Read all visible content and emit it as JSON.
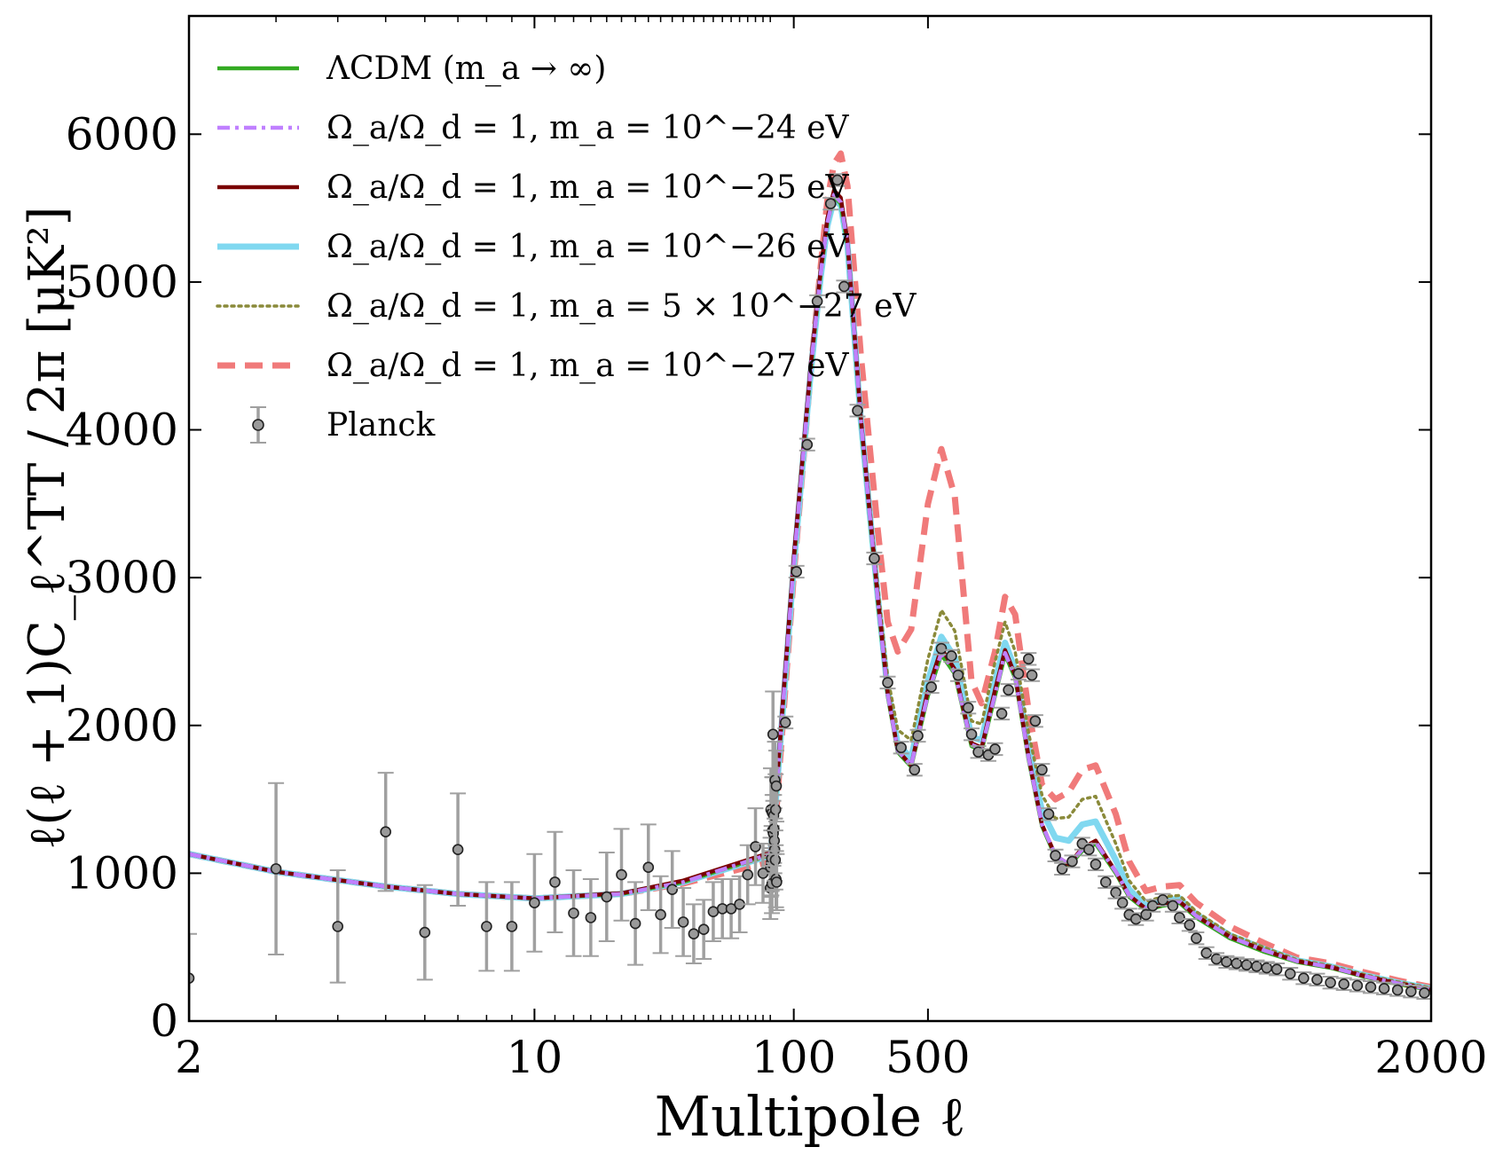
{
  "chart_data": {
    "type": "line",
    "title": "",
    "xlabel": "Multipole ℓ",
    "ylabel": "ℓ(ℓ + 1)C_ℓ^TT / 2π [μK²]",
    "xscale": "hybrid: log for ℓ < 30, linear for ℓ ≥ 30",
    "xlim": [
      2,
      2000
    ],
    "ylim": [
      0,
      6800
    ],
    "x_ticks": [
      "2",
      "10",
      "100",
      "500",
      "2000"
    ],
    "x_tick_values": [
      2,
      10,
      100,
      500,
      2000
    ],
    "y_ticks": [
      "0",
      "1000",
      "2000",
      "3000",
      "4000",
      "5000",
      "6000"
    ],
    "y_tick_values": [
      0,
      1000,
      2000,
      3000,
      4000,
      5000,
      6000
    ],
    "grid": false,
    "legend_position": "top-left",
    "legend": [
      {
        "key": "lcdm",
        "label": "ΛCDM (m_a → ∞)",
        "color": "#33aa22",
        "style": "solid"
      },
      {
        "key": "m24",
        "label": "Ω_a/Ω_d = 1,  m_a = 10^−24 eV",
        "color": "#c080ff",
        "style": "dashdot"
      },
      {
        "key": "m25",
        "label": "Ω_a/Ω_d = 1,  m_a = 10^−25 eV",
        "color": "#7a0000",
        "style": "solid"
      },
      {
        "key": "m26",
        "label": "Ω_a/Ω_d = 1,  m_a = 10^−26 eV",
        "color": "#80d8f0",
        "style": "solid-thick"
      },
      {
        "key": "m5e27",
        "label": "Ω_a/Ω_d = 1,  m_a = 5 × 10^−27 eV",
        "color": "#8a8a3a",
        "style": "dotted"
      },
      {
        "key": "m27",
        "label": "Ω_a/Ω_d = 1,  m_a = 10^−27 eV",
        "color": "#f07a7a",
        "style": "dashed"
      },
      {
        "key": "planck",
        "label": "Planck",
        "color": "#999999",
        "style": "errorbar"
      }
    ],
    "series": [
      {
        "name": "ΛCDM (m_a → ∞)",
        "x": [
          2,
          3,
          5,
          7,
          10,
          15,
          20,
          30,
          40,
          50,
          70,
          100,
          150,
          180,
          200,
          220,
          240,
          260,
          300,
          350,
          380,
          410,
          450,
          500,
          540,
          580,
          600,
          630,
          660,
          700,
          730,
          760,
          800,
          840,
          880,
          920,
          960,
          1000,
          1060,
          1100,
          1150,
          1200,
          1250,
          1300,
          1400,
          1500,
          1600,
          1700,
          1800,
          1900,
          2000
        ],
        "y": [
          1130,
          1010,
          910,
          860,
          830,
          860,
          940,
          1130,
          1350,
          1600,
          2200,
          3100,
          4400,
          5050,
          5400,
          5580,
          5530,
          5250,
          4050,
          2850,
          2200,
          1820,
          1720,
          2200,
          2480,
          2350,
          2150,
          1860,
          1830,
          2200,
          2480,
          2320,
          1770,
          1320,
          1110,
          1050,
          1150,
          1200,
          1000,
          840,
          750,
          780,
          800,
          700,
          560,
          470,
          400,
          360,
          300,
          250,
          210
        ]
      },
      {
        "name": "Ω_a/Ω_d = 1,  m_a = 10^−24 eV",
        "x": [
          2,
          3,
          5,
          7,
          10,
          15,
          20,
          30,
          40,
          50,
          70,
          100,
          150,
          180,
          200,
          220,
          240,
          260,
          300,
          350,
          380,
          410,
          450,
          500,
          540,
          580,
          600,
          630,
          660,
          700,
          730,
          760,
          800,
          840,
          880,
          920,
          960,
          1000,
          1060,
          1100,
          1150,
          1200,
          1250,
          1300,
          1400,
          1500,
          1600,
          1700,
          1800,
          1900,
          2000
        ],
        "y": [
          1130,
          1010,
          910,
          860,
          830,
          860,
          940,
          1130,
          1350,
          1600,
          2200,
          3100,
          4400,
          5050,
          5400,
          5590,
          5540,
          5260,
          4060,
          2860,
          2210,
          1830,
          1730,
          2210,
          2490,
          2360,
          2160,
          1870,
          1840,
          2210,
          2490,
          2330,
          1780,
          1330,
          1120,
          1060,
          1160,
          1210,
          1010,
          850,
          760,
          790,
          810,
          710,
          570,
          480,
          405,
          365,
          305,
          255,
          215
        ]
      },
      {
        "name": "Ω_a/Ω_d = 1,  m_a = 10^−25 eV",
        "x": [
          2,
          3,
          5,
          7,
          10,
          15,
          20,
          30,
          40,
          50,
          70,
          100,
          150,
          180,
          200,
          220,
          240,
          260,
          300,
          350,
          380,
          410,
          450,
          500,
          540,
          580,
          600,
          630,
          660,
          700,
          730,
          760,
          800,
          840,
          880,
          920,
          960,
          1000,
          1060,
          1100,
          1150,
          1200,
          1250,
          1300,
          1400,
          1500,
          1600,
          1700,
          1800,
          1900,
          2000
        ],
        "y": [
          1130,
          1010,
          910,
          860,
          830,
          865,
          950,
          1140,
          1370,
          1630,
          2240,
          3140,
          4430,
          5080,
          5430,
          5620,
          5570,
          5280,
          4080,
          2880,
          2220,
          1830,
          1730,
          2240,
          2520,
          2380,
          2170,
          1880,
          1850,
          2240,
          2510,
          2340,
          1790,
          1330,
          1120,
          1060,
          1170,
          1220,
          1010,
          850,
          760,
          790,
          810,
          710,
          570,
          480,
          405,
          365,
          305,
          255,
          215
        ]
      },
      {
        "name": "Ω_a/Ω_d = 1,  m_a = 10^−26 eV",
        "x": [
          2,
          3,
          5,
          7,
          10,
          15,
          20,
          30,
          40,
          50,
          70,
          100,
          150,
          180,
          200,
          220,
          240,
          260,
          300,
          350,
          380,
          410,
          450,
          500,
          540,
          580,
          600,
          630,
          660,
          700,
          730,
          760,
          800,
          840,
          880,
          920,
          960,
          1000,
          1060,
          1100,
          1150,
          1200,
          1250,
          1300,
          1400,
          1500,
          1600,
          1700,
          1800,
          1900,
          2000
        ],
        "y": [
          1130,
          1010,
          910,
          860,
          830,
          860,
          940,
          1120,
          1340,
          1590,
          2180,
          3080,
          4380,
          5030,
          5380,
          5560,
          5520,
          5250,
          4060,
          2880,
          2240,
          1870,
          1780,
          2300,
          2600,
          2460,
          2250,
          1920,
          1900,
          2300,
          2560,
          2380,
          1850,
          1420,
          1240,
          1220,
          1330,
          1350,
          1090,
          890,
          780,
          810,
          830,
          720,
          580,
          490,
          410,
          370,
          310,
          260,
          220
        ]
      },
      {
        "name": "Ω_a/Ω_d = 1,  m_a = 5 × 10^−27 eV",
        "x": [
          2,
          3,
          5,
          7,
          10,
          15,
          20,
          30,
          40,
          50,
          70,
          100,
          150,
          180,
          200,
          220,
          240,
          260,
          300,
          350,
          380,
          410,
          450,
          500,
          540,
          580,
          600,
          630,
          660,
          700,
          730,
          760,
          800,
          840,
          880,
          920,
          960,
          1000,
          1060,
          1100,
          1150,
          1200,
          1250,
          1300,
          1400,
          1500,
          1600,
          1700,
          1800,
          1900,
          2000
        ],
        "y": [
          1130,
          1010,
          910,
          860,
          830,
          860,
          940,
          1120,
          1340,
          1590,
          2180,
          3080,
          4390,
          5040,
          5400,
          5580,
          5540,
          5270,
          4100,
          2950,
          2330,
          1970,
          1900,
          2450,
          2780,
          2640,
          2400,
          2030,
          2010,
          2430,
          2700,
          2500,
          1950,
          1530,
          1370,
          1380,
          1500,
          1520,
          1200,
          950,
          810,
          840,
          850,
          740,
          590,
          500,
          415,
          375,
          315,
          265,
          225
        ]
      },
      {
        "name": "Ω_a/Ω_d = 1,  m_a = 10^−27 eV",
        "x": [
          2,
          3,
          5,
          7,
          10,
          15,
          20,
          30,
          40,
          50,
          70,
          100,
          150,
          180,
          200,
          220,
          240,
          260,
          300,
          350,
          380,
          410,
          450,
          500,
          540,
          580,
          600,
          630,
          660,
          700,
          730,
          760,
          800,
          840,
          880,
          920,
          960,
          1000,
          1060,
          1100,
          1150,
          1200,
          1250,
          1300,
          1400,
          1500,
          1600,
          1700,
          1800,
          1900,
          2000
        ],
        "y": [
          1130,
          1010,
          910,
          860,
          830,
          860,
          930,
          1080,
          1260,
          1480,
          2100,
          3020,
          4380,
          5100,
          5550,
          5800,
          5870,
          5650,
          4500,
          3330,
          2700,
          2500,
          2650,
          3500,
          3870,
          3550,
          3050,
          2300,
          2150,
          2500,
          2870,
          2750,
          2100,
          1600,
          1500,
          1550,
          1700,
          1730,
          1400,
          1080,
          880,
          910,
          920,
          800,
          640,
          530,
          430,
          390,
          330,
          275,
          230
        ]
      }
    ],
    "planck_points": {
      "name": "Planck",
      "x": [
        2,
        3,
        4,
        5,
        6,
        7,
        8,
        9,
        10,
        11,
        12,
        13,
        14,
        15,
        16,
        17,
        18,
        19,
        20,
        21,
        22,
        23,
        24,
        25,
        26,
        27,
        28,
        29,
        30,
        31,
        32,
        33,
        34,
        35,
        36,
        37,
        38,
        39,
        40,
        41,
        42,
        43,
        44,
        45,
        46,
        47,
        48,
        49,
        75,
        108,
        140,
        170,
        210,
        230,
        250,
        290,
        340,
        380,
        420,
        460,
        470,
        510,
        540,
        570,
        590,
        620,
        630,
        650,
        680,
        700,
        720,
        740,
        770,
        800,
        810,
        820,
        840,
        860,
        880,
        900,
        930,
        960,
        980,
        1000,
        1030,
        1060,
        1080,
        1100,
        1120,
        1150,
        1170,
        1200,
        1230,
        1250,
        1280,
        1300,
        1330,
        1360,
        1390,
        1420,
        1450,
        1480,
        1510,
        1540,
        1580,
        1620,
        1660,
        1700,
        1740,
        1780,
        1820,
        1860,
        1900,
        1940,
        1980
      ],
      "y": [
        290,
        1030,
        640,
        1280,
        600,
        1160,
        640,
        640,
        800,
        940,
        730,
        700,
        840,
        990,
        660,
        1040,
        720,
        890,
        670,
        590,
        620,
        740,
        760,
        760,
        790,
        990,
        1180,
        1000,
        900,
        1040,
        1430,
        1070,
        1100,
        930,
        1410,
        1290,
        1940,
        1270,
        1390,
        1300,
        1220,
        1160,
        1630,
        1090,
        1430,
        960,
        1590,
        940,
        2020,
        3040,
        3900,
        4870,
        5530,
        5690,
        4970,
        4130,
        3130,
        2290,
        1850,
        1700,
        1930,
        2260,
        2520,
        2470,
        2340,
        2120,
        1940,
        1820,
        1800,
        1840,
        2080,
        2240,
        2350,
        2450,
        2340,
        2030,
        1700,
        1400,
        1120,
        1030,
        1080,
        1200,
        1160,
        1060,
        940,
        870,
        800,
        720,
        690,
        720,
        780,
        820,
        780,
        700,
        650,
        560,
        460,
        420,
        400,
        390,
        380,
        370,
        360,
        350,
        320,
        290,
        280,
        260,
        250,
        240,
        230,
        220,
        210,
        200,
        190
      ],
      "err": [
        300,
        580,
        380,
        400,
        320,
        380,
        300,
        300,
        330,
        340,
        290,
        260,
        300,
        310,
        280,
        290,
        260,
        260,
        230,
        200,
        200,
        200,
        200,
        200,
        190,
        200,
        260,
        200,
        210,
        200,
        280,
        220,
        220,
        200,
        240,
        240,
        290,
        220,
        260,
        230,
        220,
        210,
        260,
        200,
        240,
        190,
        240,
        190,
        40,
        40,
        40,
        40,
        40,
        40,
        40,
        40,
        40,
        40,
        40,
        40,
        40,
        40,
        40,
        40,
        40,
        40,
        40,
        40,
        40,
        40,
        40,
        40,
        40,
        40,
        40,
        40,
        40,
        40,
        40,
        40,
        40,
        40,
        40,
        40,
        40,
        40,
        40,
        40,
        40,
        40,
        40,
        40,
        40,
        40,
        40,
        40,
        40,
        40,
        40,
        40,
        40,
        40,
        40,
        40,
        40,
        40,
        40,
        40,
        40,
        40,
        40,
        40,
        40,
        40,
        40
      ]
    }
  }
}
